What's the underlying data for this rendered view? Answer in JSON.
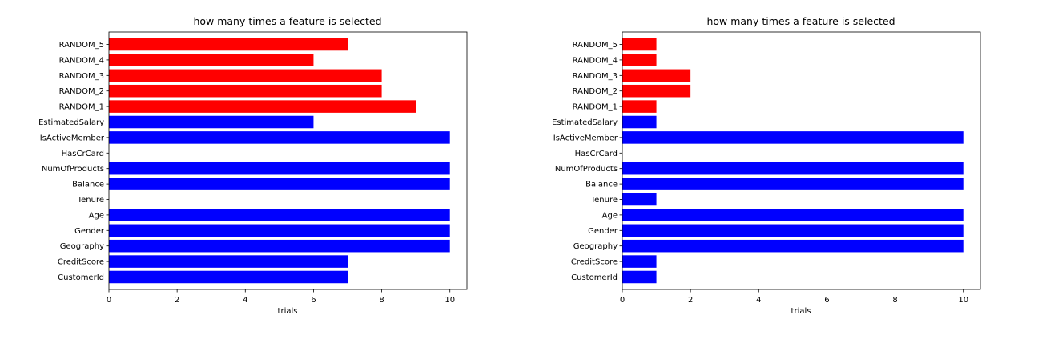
{
  "chart_data": [
    {
      "type": "bar",
      "orientation": "horizontal",
      "title": "how many times a feature is selected",
      "xlabel": "trials",
      "ylabel": "",
      "xlim": [
        0,
        10.5
      ],
      "xticks": [
        "0",
        "2",
        "4",
        "6",
        "8",
        "10"
      ],
      "grid": false,
      "categories": [
        "CustomerId",
        "CreditScore",
        "Geography",
        "Gender",
        "Age",
        "Tenure",
        "Balance",
        "NumOfProducts",
        "HasCrCard",
        "IsActiveMember",
        "EstimatedSalary",
        "RANDOM_1",
        "RANDOM_2",
        "RANDOM_3",
        "RANDOM_4",
        "RANDOM_5"
      ],
      "values": [
        7,
        7,
        10,
        10,
        10,
        0,
        10,
        10,
        0,
        10,
        6,
        9,
        8,
        8,
        6,
        7
      ],
      "colors": [
        "#0000ff",
        "#0000ff",
        "#0000ff",
        "#0000ff",
        "#0000ff",
        "#0000ff",
        "#0000ff",
        "#0000ff",
        "#0000ff",
        "#0000ff",
        "#0000ff",
        "#ff0000",
        "#ff0000",
        "#ff0000",
        "#ff0000",
        "#ff0000"
      ]
    },
    {
      "type": "bar",
      "orientation": "horizontal",
      "title": "how many times a feature is selected",
      "xlabel": "trials",
      "ylabel": "",
      "xlim": [
        0,
        10.5
      ],
      "xticks": [
        "0",
        "2",
        "4",
        "6",
        "8",
        "10"
      ],
      "grid": false,
      "categories": [
        "CustomerId",
        "CreditScore",
        "Geography",
        "Gender",
        "Age",
        "Tenure",
        "Balance",
        "NumOfProducts",
        "HasCrCard",
        "IsActiveMember",
        "EstimatedSalary",
        "RANDOM_1",
        "RANDOM_2",
        "RANDOM_3",
        "RANDOM_4",
        "RANDOM_5"
      ],
      "values": [
        1,
        1,
        10,
        10,
        10,
        1,
        10,
        10,
        0,
        10,
        1,
        1,
        2,
        2,
        1,
        1
      ],
      "colors": [
        "#0000ff",
        "#0000ff",
        "#0000ff",
        "#0000ff",
        "#0000ff",
        "#0000ff",
        "#0000ff",
        "#0000ff",
        "#0000ff",
        "#0000ff",
        "#0000ff",
        "#ff0000",
        "#ff0000",
        "#ff0000",
        "#ff0000",
        "#ff0000"
      ]
    }
  ]
}
